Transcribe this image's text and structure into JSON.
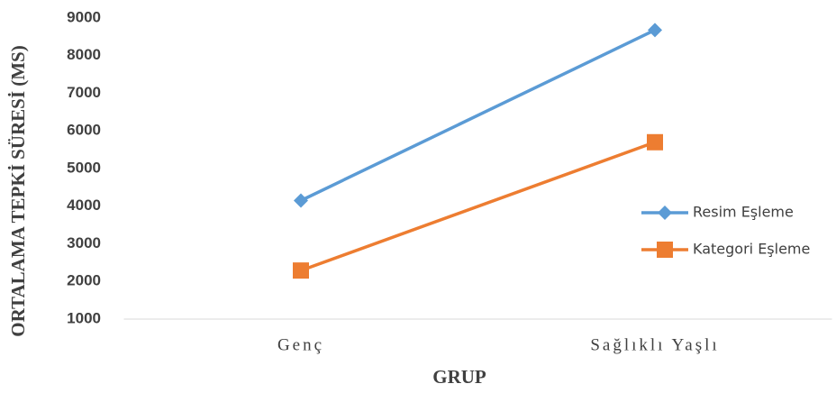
{
  "chart_data": {
    "type": "line",
    "x_label": "GRUP",
    "y_label": "ORTALAMA TEPKİ SÜRESİ (MS)",
    "categories": [
      "Genç",
      "Sağlıklı Yaşlı"
    ],
    "series": [
      {
        "name": "Resim Eşleme",
        "color": "#5b9bd5",
        "marker": "diamond",
        "values": [
          4150,
          8680
        ]
      },
      {
        "name": "Kategori Eşleme",
        "color": "#ed7d31",
        "marker": "square",
        "values": [
          2290,
          5700
        ]
      }
    ],
    "ylim": [
      1000,
      9000
    ],
    "yticks": [
      1000,
      2000,
      3000,
      4000,
      5000,
      6000,
      7000,
      8000,
      9000
    ],
    "grid": false,
    "legend": "right"
  }
}
